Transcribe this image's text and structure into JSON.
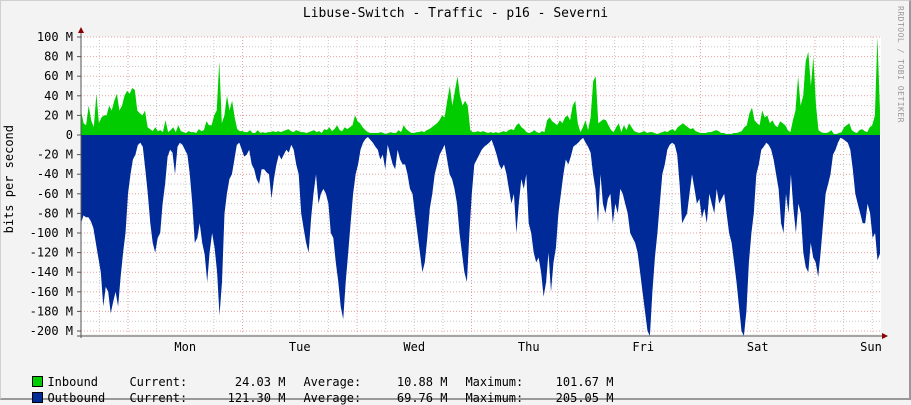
{
  "title": "Libuse-Switch - Traffic - p16 - Severni",
  "watermark": "RRDTOOL / TOBI OETIKER",
  "colors": {
    "inbound": "#00cc00",
    "outbound": "#002a97",
    "grid_major": "#e9a0a0",
    "grid_minor": "#c8c8c8",
    "axis": "#555555",
    "arrow": "#880000",
    "background": "#f3f3f3",
    "plot_bg": "#ffffff"
  },
  "chart_data": {
    "type": "area",
    "title": "Libuse-Switch - Traffic - p16 - Severni",
    "xlabel": "",
    "ylabel": "bits per second",
    "ylim": [
      -205,
      102
    ],
    "y_ticks": [
      100,
      80,
      60,
      40,
      20,
      0,
      -20,
      -40,
      -60,
      -80,
      -100,
      -120,
      -140,
      -160,
      -180,
      -200
    ],
    "y_tick_labels": [
      "100 M",
      "80 M",
      "60 M",
      "40 M",
      "20 M",
      "0",
      "-20 M",
      "-40 M",
      "-60 M",
      "-80 M",
      "-100 M",
      "-120 M",
      "-140 M",
      "-160 M",
      "-180 M",
      "-200 M"
    ],
    "x_tick_labels": [
      "Mon",
      "Tue",
      "Wed",
      "Thu",
      "Fri",
      "Sat",
      "Sun"
    ],
    "grid": true,
    "legend_position": "bottom",
    "units": "M bits per second",
    "samples_per_day": 28.6,
    "series": [
      {
        "name": "Inbound",
        "color": "#00cc00",
        "sign": 1,
        "values": [
          25,
          12,
          10,
          30,
          15,
          8,
          42,
          12,
          18,
          20,
          20,
          30,
          25,
          35,
          42,
          25,
          30,
          40,
          45,
          42,
          48,
          46,
          25,
          22,
          20,
          25,
          8,
          6,
          4,
          8,
          4,
          5,
          3,
          15,
          3,
          5,
          8,
          3,
          10,
          4,
          3,
          2,
          4,
          3,
          3,
          2,
          6,
          4,
          5,
          14,
          10,
          10,
          20,
          25,
          75,
          12,
          20,
          40,
          25,
          35,
          18,
          6,
          4,
          4,
          3,
          3,
          5,
          2,
          2,
          5,
          2,
          3,
          2,
          3,
          3,
          4,
          3,
          4,
          3,
          4,
          5,
          6,
          4,
          3,
          5,
          4,
          3,
          3,
          2,
          3,
          4,
          5,
          3,
          4,
          2,
          6,
          5,
          8,
          4,
          6,
          10,
          5,
          4,
          8,
          6,
          8,
          10,
          20,
          14,
          12,
          8,
          5,
          3,
          2,
          2,
          2,
          2,
          3,
          2,
          1,
          2,
          3,
          2,
          2,
          5,
          3,
          10,
          6,
          4,
          2,
          2,
          3,
          3,
          4,
          3,
          5,
          6,
          8,
          10,
          12,
          15,
          20,
          18,
          35,
          50,
          30,
          45,
          60,
          40,
          30,
          35,
          30,
          5,
          3,
          3,
          4,
          3,
          4,
          3,
          2,
          3,
          2,
          3,
          2,
          3,
          4,
          3,
          5,
          6,
          5,
          10,
          12,
          8,
          6,
          3,
          2,
          3,
          5,
          3,
          2,
          4,
          3,
          15,
          18,
          14,
          12,
          10,
          15,
          12,
          18,
          20,
          15,
          30,
          35,
          12,
          3,
          8,
          15,
          5,
          18,
          55,
          60,
          12,
          14,
          16,
          15,
          10,
          5,
          3,
          8,
          12,
          3,
          10,
          5,
          12,
          8,
          4,
          3,
          2,
          3,
          4,
          2,
          3,
          3,
          2,
          1,
          2,
          3,
          4,
          3,
          5,
          6,
          4,
          8,
          10,
          12,
          10,
          8,
          6,
          7,
          4,
          3,
          2,
          2,
          2,
          3,
          3,
          4,
          5,
          4,
          2,
          2,
          1,
          1,
          1,
          2,
          2,
          3,
          4,
          8,
          10,
          22,
          28,
          15,
          12,
          10,
          25,
          18,
          20,
          12,
          15,
          10,
          8,
          14,
          12,
          10,
          5,
          3,
          15,
          25,
          60,
          30,
          40,
          75,
          85,
          50,
          80,
          30,
          5,
          3,
          2,
          2,
          3,
          5,
          1,
          1,
          2,
          3,
          8,
          10,
          12,
          5,
          3,
          2,
          5,
          6,
          4,
          3,
          8,
          10,
          20,
          100,
          24
        ]
      },
      {
        "name": "Outbound",
        "color": "#002a97",
        "sign": -1,
        "values": [
          90,
          82,
          84,
          84,
          88,
          95,
          110,
          125,
          140,
          175,
          155,
          160,
          182,
          170,
          160,
          175,
          145,
          120,
          100,
          60,
          40,
          25,
          20,
          10,
          8,
          12,
          35,
          60,
          90,
          110,
          120,
          105,
          100,
          70,
          50,
          22,
          15,
          18,
          40,
          12,
          8,
          10,
          15,
          20,
          40,
          70,
          110,
          105,
          90,
          110,
          122,
          150,
          120,
          100,
          115,
          140,
          184,
          150,
          80,
          60,
          45,
          40,
          25,
          10,
          8,
          15,
          22,
          20,
          15,
          30,
          35,
          45,
          50,
          35,
          35,
          38,
          40,
          65,
          45,
          30,
          20,
          25,
          20,
          15,
          18,
          10,
          15,
          30,
          40,
          80,
          95,
          110,
          120,
          85,
          60,
          40,
          70,
          60,
          55,
          60,
          70,
          100,
          105,
          130,
          150,
          175,
          188,
          150,
          120,
          90,
          60,
          40,
          30,
          15,
          8,
          4,
          2,
          5,
          8,
          12,
          15,
          25,
          20,
          35,
          10,
          20,
          30,
          35,
          15,
          25,
          30,
          30,
          40,
          55,
          60,
          80,
          100,
          120,
          140,
          130,
          105,
          75,
          60,
          40,
          30,
          20,
          15,
          10,
          25,
          40,
          45,
          55,
          70,
          100,
          120,
          140,
          150,
          100,
          60,
          30,
          25,
          20,
          15,
          12,
          10,
          8,
          5,
          12,
          20,
          30,
          35,
          30,
          40,
          55,
          70,
          60,
          100,
          70,
          45,
          55,
          40,
          90,
          100,
          120,
          130,
          125,
          140,
          165,
          150,
          120,
          160,
          130,
          115,
          80,
          60,
          40,
          25,
          30,
          22,
          12,
          10,
          8,
          5,
          3,
          8,
          12,
          18,
          40,
          55,
          90,
          40,
          70,
          80,
          65,
          60,
          90,
          70,
          80,
          55,
          60,
          70,
          80,
          100,
          105,
          110,
          120,
          140,
          160,
          180,
          200,
          205,
          160,
          125,
          100,
          70,
          40,
          30,
          15,
          10,
          8,
          10,
          20,
          50,
          90,
          85,
          80,
          60,
          40,
          55,
          70,
          65,
          85,
          75,
          90,
          60,
          70,
          80,
          55,
          70,
          65,
          60,
          80,
          100,
          110,
          130,
          150,
          175,
          200,
          205,
          180,
          130,
          100,
          80,
          40,
          30,
          15,
          12,
          8,
          10,
          15,
          25,
          40,
          55,
          90,
          100,
          60,
          80,
          40,
          75,
          100,
          70,
          80,
          120,
          135,
          140,
          110,
          125,
          130,
          145,
          120,
          90,
          60,
          50,
          40,
          20,
          15,
          8,
          3,
          4,
          6,
          8,
          15,
          35,
          60,
          70,
          80,
          90,
          90,
          70,
          80,
          105,
          100,
          128,
          121
        ]
      }
    ]
  },
  "axis": {
    "x_labels": [
      "Mon",
      "Tue",
      "Wed",
      "Thu",
      "Fri",
      "Sat",
      "Sun"
    ]
  },
  "legend": {
    "rows": [
      {
        "name": "Inbound",
        "current_label": "Current:",
        "current": "24.03 M",
        "average_label": "Average:",
        "average": "10.88 M",
        "maximum_label": "Maximum:",
        "maximum": "101.67 M"
      },
      {
        "name": "Outbound",
        "current_label": "Current:",
        "current": "121.30 M",
        "average_label": "Average:",
        "average": "69.76 M",
        "maximum_label": "Maximum:",
        "maximum": "205.05 M"
      }
    ]
  }
}
